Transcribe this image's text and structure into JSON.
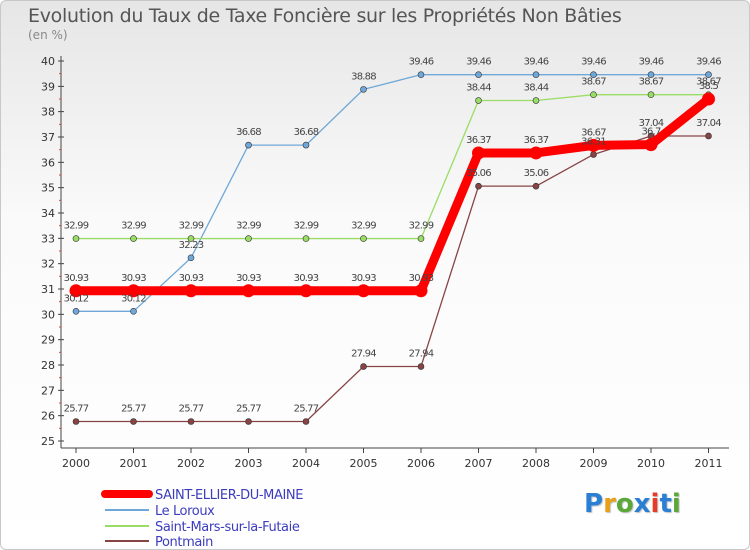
{
  "chart_data": {
    "type": "line",
    "title": "Evolution du Taux de Taxe Foncière sur les Propriétés Non Bâties",
    "ylabel": "(en %)",
    "xlabel": "",
    "x": [
      "2000",
      "2001",
      "2002",
      "2003",
      "2004",
      "2005",
      "2006",
      "2007",
      "2008",
      "2009",
      "2010",
      "2011"
    ],
    "ylim": [
      25,
      40
    ],
    "yticks": [
      "25",
      "26",
      "27",
      "28",
      "29",
      "30",
      "31",
      "32",
      "33",
      "34",
      "35",
      "36",
      "37",
      "38",
      "39",
      "40"
    ],
    "series": [
      {
        "name": "SAINT-ELLIER-DU-MAINE",
        "color": "#ff0000",
        "values": [
          30.93,
          30.93,
          30.93,
          30.93,
          30.93,
          30.93,
          30.93,
          36.37,
          36.37,
          36.67,
          36.7,
          38.5
        ],
        "labels": [
          "30.93",
          "30.93",
          "30.93",
          "30.93",
          "30.93",
          "30.93",
          "30.93",
          "36.37",
          "36.37",
          "36.67",
          "36.7",
          "38.5"
        ]
      },
      {
        "name": "Le Loroux",
        "color": "#6fa8d8",
        "values": [
          30.12,
          30.12,
          32.23,
          36.68,
          36.68,
          38.88,
          39.46,
          39.46,
          39.46,
          39.46,
          39.46,
          39.46
        ],
        "labels": [
          "30.12",
          "30.12",
          "32.23",
          "36.68",
          "36.68",
          "38.88",
          "39.46",
          "39.46",
          "39.46",
          "39.46",
          "39.46",
          "39.46"
        ]
      },
      {
        "name": "Saint-Mars-sur-la-Futaie",
        "color": "#99dd66",
        "values": [
          32.99,
          32.99,
          32.99,
          32.99,
          32.99,
          32.99,
          32.99,
          38.44,
          38.44,
          38.67,
          38.67,
          38.67
        ],
        "labels": [
          "32.99",
          "32.99",
          "32.99",
          "32.99",
          "32.99",
          "32.99",
          "32.99",
          "38.44",
          "38.44",
          "38.67",
          "38.67",
          "38.67"
        ]
      },
      {
        "name": "Pontmain",
        "color": "#884444",
        "values": [
          25.77,
          25.77,
          25.77,
          25.77,
          25.77,
          27.94,
          27.94,
          35.06,
          35.06,
          36.31,
          37.04,
          37.04
        ],
        "labels": [
          "25.77",
          "25.77",
          "25.77",
          "25.77",
          "25.77",
          "27.94",
          "27.94",
          "35.06",
          "35.06",
          "36.31",
          "37.04",
          "37.04"
        ]
      }
    ],
    "legend": "bottom-left",
    "grid": false
  },
  "logo": {
    "text": "Proxiti",
    "colors": [
      "#2a7fd4",
      "#e8a01a",
      "#5aa83a",
      "#2a7fd4",
      "#e63a2a",
      "#2a7fd4",
      "#5aa83a"
    ]
  }
}
